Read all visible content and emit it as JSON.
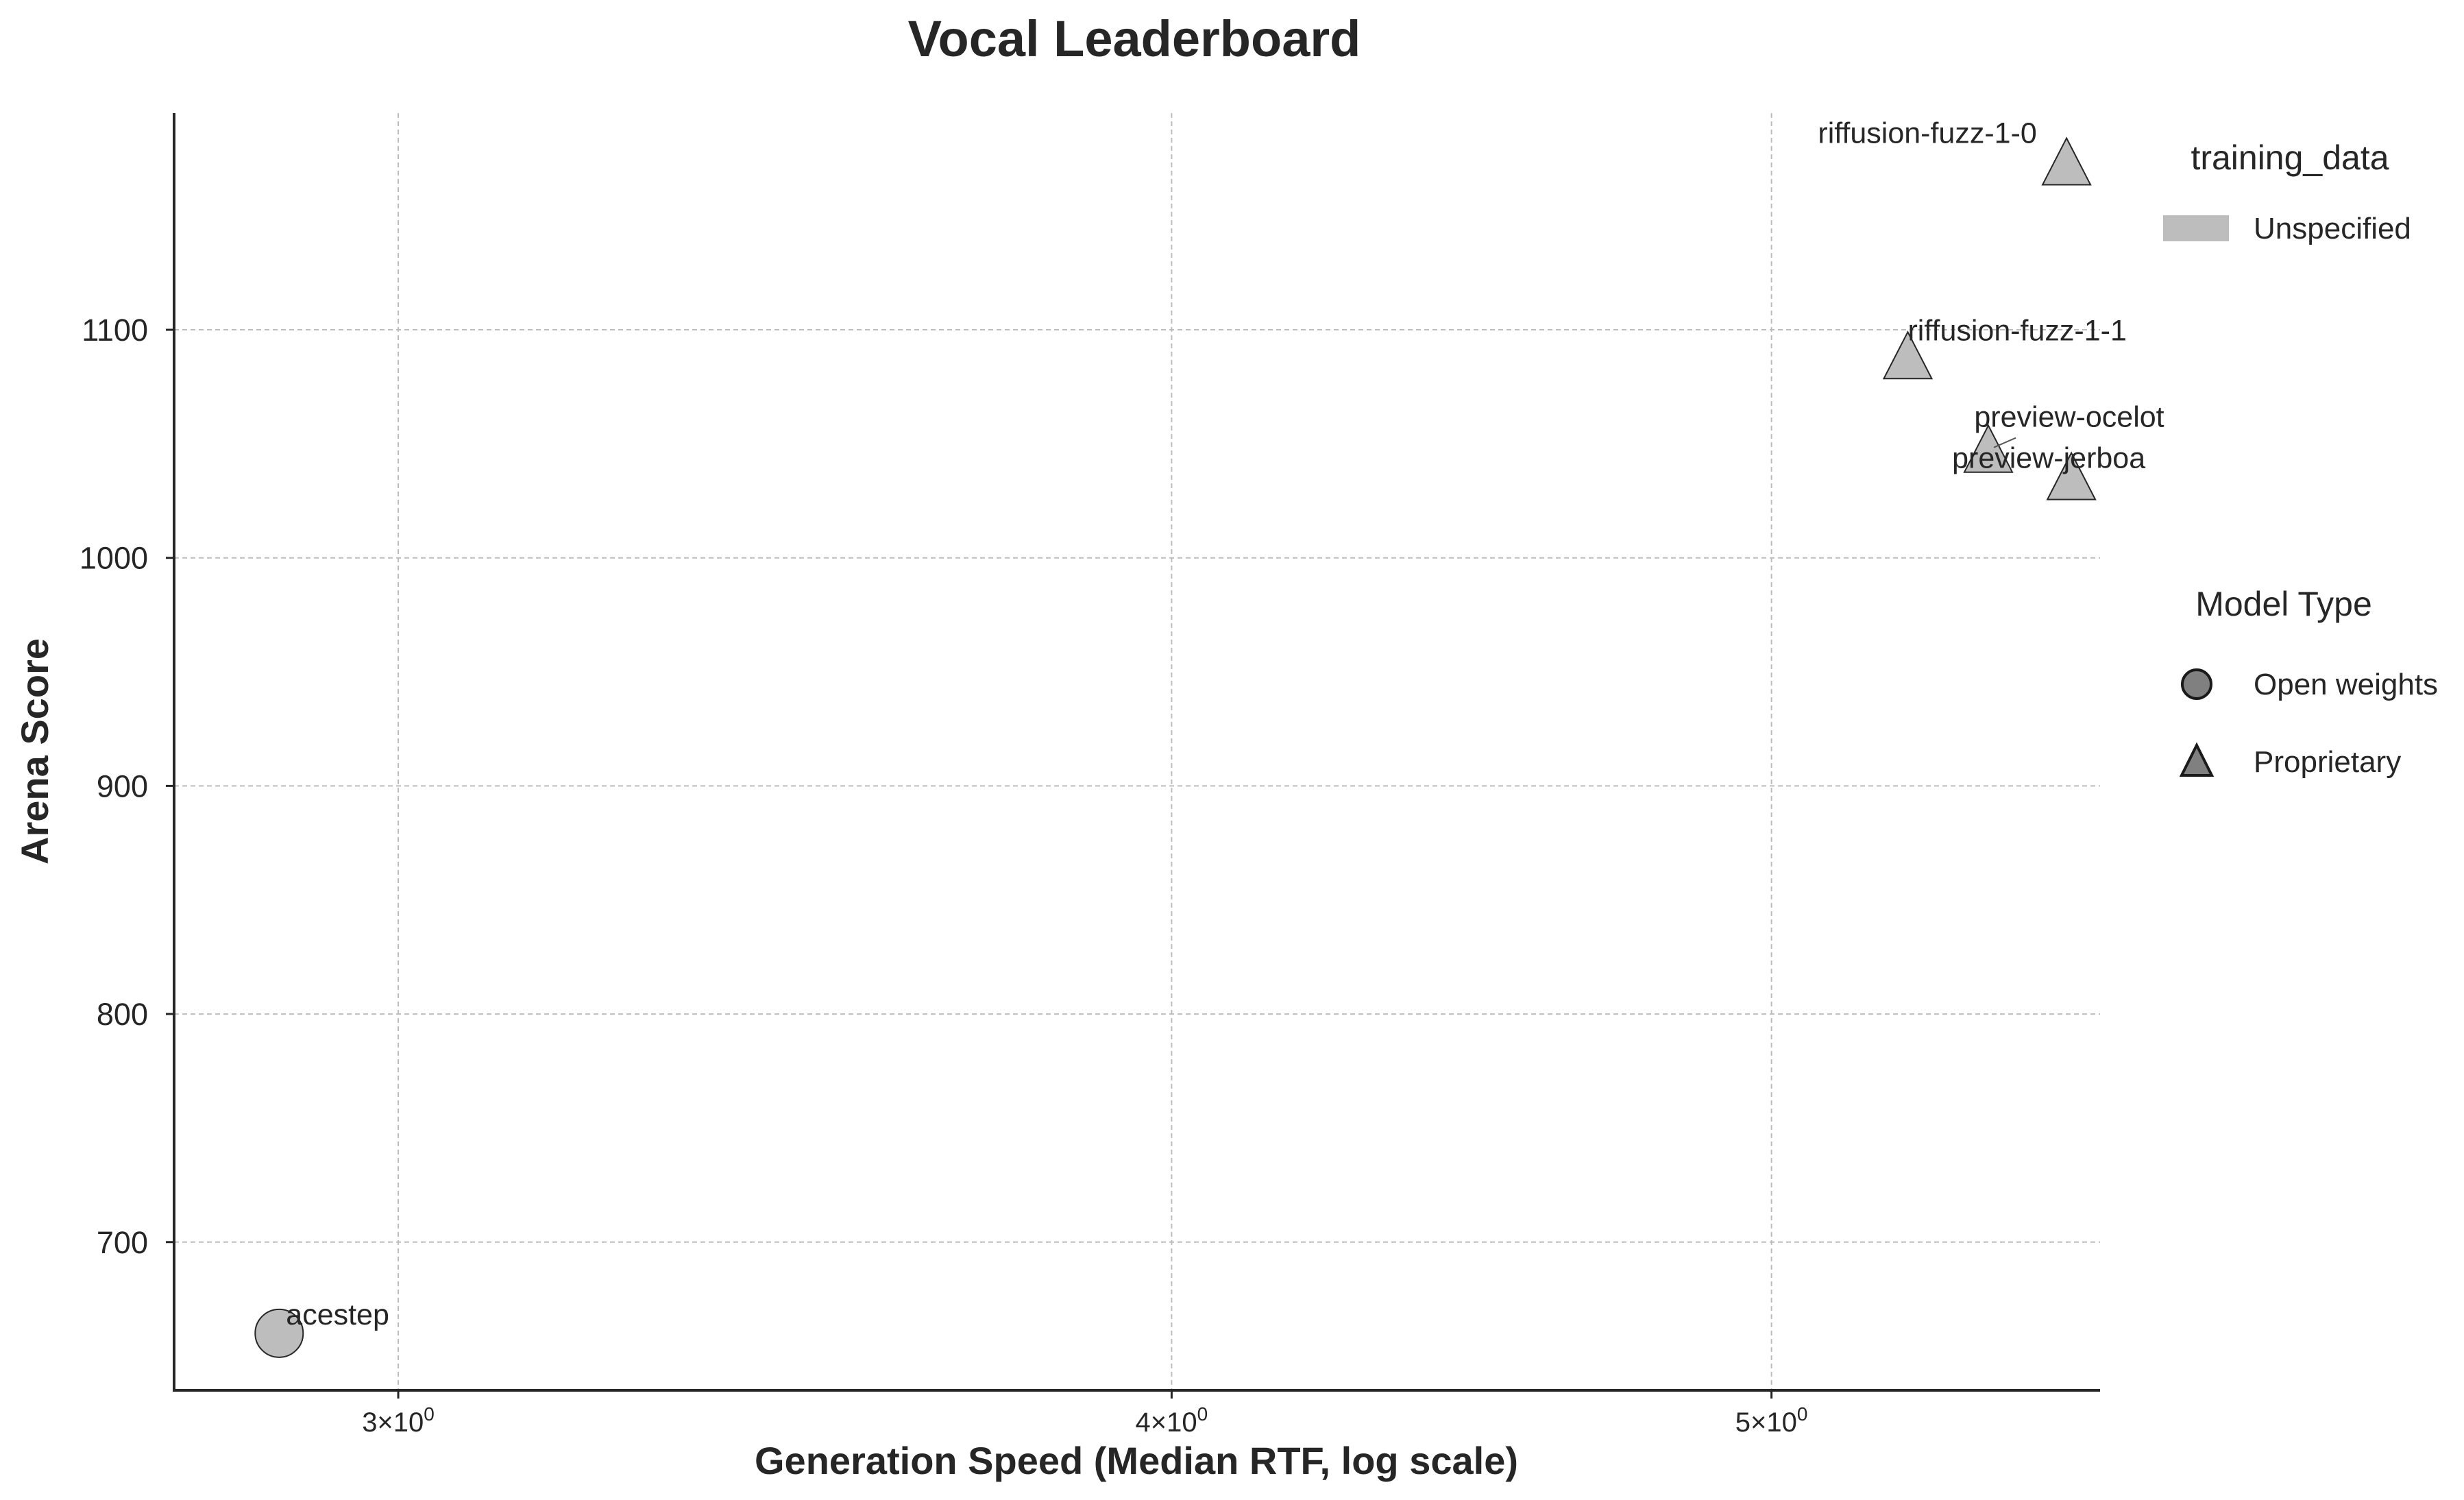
{
  "chart_data": {
    "type": "scatter",
    "title": "Vocal Leaderboard",
    "xlabel": "Generation Speed (Median RTF, log scale)",
    "ylabel": "Arena Score",
    "x_scale": "log",
    "xlim": [
      2.76,
      5.65
    ],
    "ylim": [
      635,
      1195
    ],
    "grid": true,
    "x_ticks": [
      {
        "value": 3,
        "base": "3",
        "exp": "0"
      },
      {
        "value": 4,
        "base": "4",
        "exp": "0"
      },
      {
        "value": 5,
        "base": "5",
        "exp": "0"
      }
    ],
    "y_ticks": [
      700,
      800,
      900,
      1000,
      1100
    ],
    "points": [
      {
        "label": "riffusion-fuzz-1-0",
        "x": 5.58,
        "y": 1172,
        "marker": "triangle",
        "model_type": "Proprietary",
        "training_data": "Unspecified"
      },
      {
        "label": "riffusion-fuzz-1-1",
        "x": 5.26,
        "y": 1087,
        "marker": "triangle",
        "model_type": "Proprietary",
        "training_data": "Unspecified"
      },
      {
        "label": "preview-ocelot",
        "x": 5.42,
        "y": 1046,
        "marker": "triangle",
        "model_type": "Proprietary",
        "training_data": "Unspecified"
      },
      {
        "label": "preview-jerboa",
        "x": 5.59,
        "y": 1034,
        "marker": "triangle",
        "model_type": "Proprietary",
        "training_data": "Unspecified"
      },
      {
        "label": "acestep",
        "x": 2.87,
        "y": 660,
        "marker": "circle",
        "model_type": "Open weights",
        "training_data": "Unspecified"
      }
    ],
    "legend": {
      "placement": "right",
      "training_data": {
        "title": "training_data",
        "entries": [
          {
            "label": "Unspecified",
            "color": "#bdbdbd"
          }
        ]
      },
      "model_type": {
        "title": "Model Type",
        "entries": [
          {
            "label": "Open weights",
            "marker": "circle"
          },
          {
            "label": "Proprietary",
            "marker": "triangle"
          }
        ]
      }
    },
    "colors": {
      "marker_fill": "#bdbdbd",
      "legend_marker_fill": "#808080",
      "grid": "#bdbdbd",
      "text": "#262626"
    }
  }
}
